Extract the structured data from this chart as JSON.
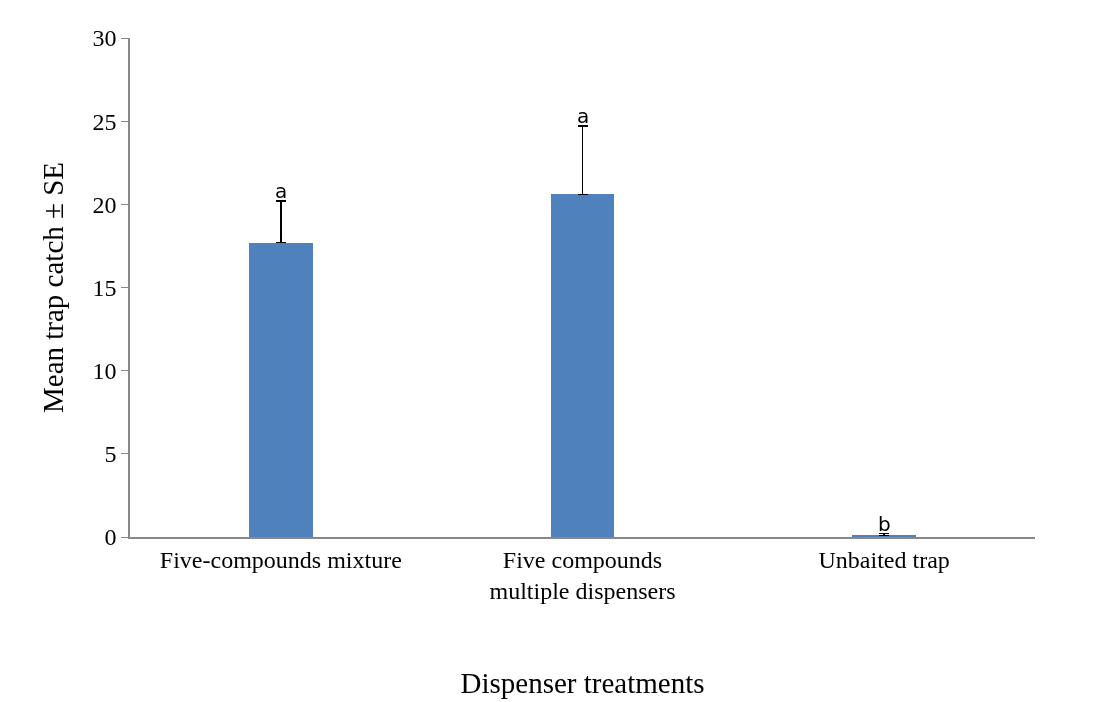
{
  "chart_data": {
    "type": "bar",
    "xlabel": "Dispenser treatments",
    "ylabel": "Mean trap catch ± SE",
    "categories": [
      "Five-compounds mixture",
      "Five compounds multiple dispensers",
      "Unbaited trap"
    ],
    "values": [
      17.7,
      20.6,
      0.1
    ],
    "color": "#4f81bd",
    "errors": [
      [
        17.7,
        20.2
      ],
      [
        20.6,
        24.7
      ],
      [
        0.1,
        0.2
      ]
    ],
    "ylim": [
      0,
      30
    ],
    "yticks": [
      0,
      5,
      10,
      15,
      20,
      25,
      30
    ],
    "grid": false,
    "annotations": [
      {
        "text": "a",
        "x": "Five-compounds mixture",
        "y": 20.2
      },
      {
        "text": "a",
        "x": "Five compounds multiple dispensers",
        "y": 24.7
      },
      {
        "text": "b",
        "x": "Unbaited trap",
        "y": 0.2
      }
    ]
  }
}
